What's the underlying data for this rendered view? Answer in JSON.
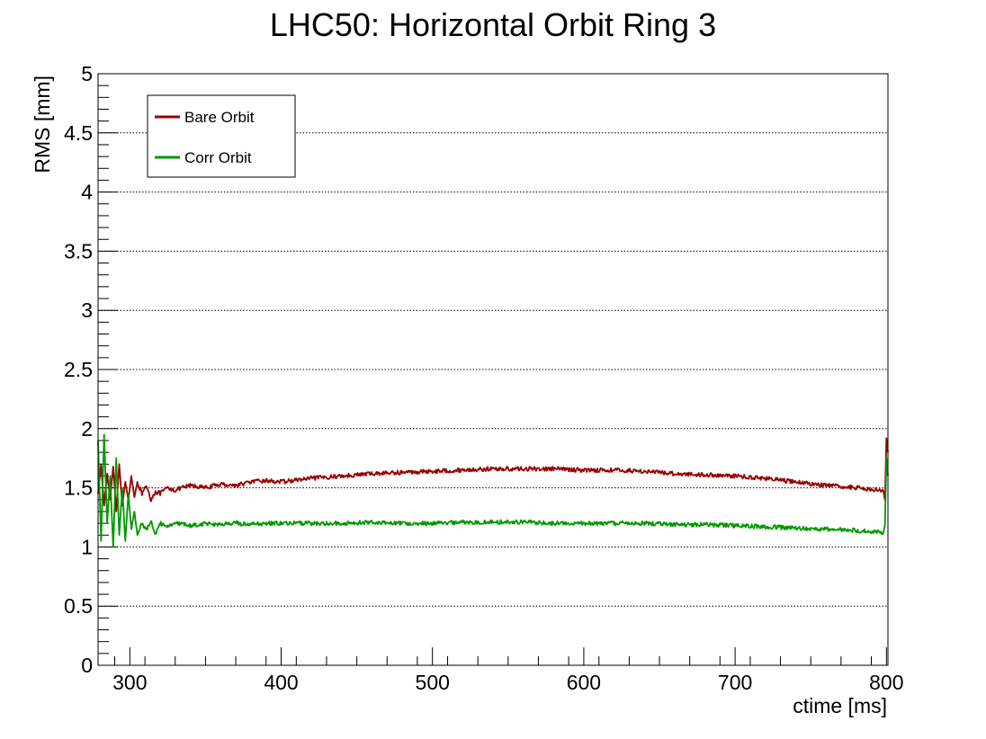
{
  "chart_data": {
    "type": "line",
    "title": "LHC50: Horizontal Orbit Ring 3",
    "xlabel": "ctime [ms]",
    "ylabel": "RMS [mm]",
    "xlim": [
      279,
      801
    ],
    "ylim": [
      0,
      5
    ],
    "x_ticks": [
      "300",
      "400",
      "500",
      "600",
      "700",
      "800"
    ],
    "y_ticks": [
      "0",
      "0.5",
      "1",
      "1.5",
      "2",
      "2.5",
      "3",
      "3.5",
      "4",
      "4.5",
      "5"
    ],
    "grid": "horizontal dotted",
    "legend_position": "top-left",
    "series": [
      {
        "name": "Bare Orbit",
        "color": "#990000",
        "x": [
          279,
          281,
          283,
          285,
          287,
          289,
          291,
          293,
          295,
          297,
          299,
          301,
          303,
          305,
          308,
          311,
          314,
          317,
          320,
          325,
          330,
          340,
          350,
          360,
          370,
          380,
          390,
          400,
          420,
          440,
          460,
          480,
          500,
          520,
          540,
          560,
          580,
          600,
          620,
          640,
          660,
          680,
          700,
          720,
          740,
          760,
          780,
          790,
          795,
          798,
          799,
          800,
          801
        ],
        "y": [
          1.45,
          1.7,
          1.35,
          1.62,
          1.4,
          1.68,
          1.3,
          1.7,
          1.35,
          1.55,
          1.4,
          1.6,
          1.42,
          1.55,
          1.45,
          1.52,
          1.4,
          1.47,
          1.45,
          1.5,
          1.48,
          1.52,
          1.5,
          1.53,
          1.52,
          1.55,
          1.56,
          1.55,
          1.58,
          1.6,
          1.62,
          1.63,
          1.64,
          1.65,
          1.66,
          1.66,
          1.66,
          1.65,
          1.65,
          1.64,
          1.62,
          1.61,
          1.6,
          1.58,
          1.55,
          1.52,
          1.5,
          1.49,
          1.48,
          1.47,
          1.4,
          1.92,
          1.8
        ]
      },
      {
        "name": "Corr Orbit",
        "color": "#009900",
        "x": [
          279,
          281,
          283,
          285,
          287,
          289,
          291,
          293,
          295,
          297,
          299,
          301,
          303,
          305,
          308,
          311,
          314,
          317,
          320,
          325,
          330,
          340,
          350,
          360,
          370,
          380,
          390,
          400,
          420,
          440,
          460,
          480,
          500,
          520,
          540,
          560,
          580,
          600,
          620,
          640,
          660,
          680,
          700,
          720,
          740,
          760,
          780,
          790,
          795,
          798,
          799,
          800,
          801
        ],
        "y": [
          1.9,
          1.05,
          1.95,
          1.2,
          1.6,
          1.0,
          1.75,
          1.1,
          1.5,
          1.05,
          1.45,
          1.15,
          1.3,
          1.1,
          1.2,
          1.15,
          1.22,
          1.1,
          1.2,
          1.18,
          1.2,
          1.18,
          1.2,
          1.19,
          1.2,
          1.19,
          1.2,
          1.2,
          1.2,
          1.2,
          1.21,
          1.2,
          1.2,
          1.21,
          1.21,
          1.21,
          1.2,
          1.2,
          1.2,
          1.2,
          1.19,
          1.19,
          1.18,
          1.17,
          1.16,
          1.15,
          1.14,
          1.13,
          1.13,
          1.12,
          1.18,
          1.75,
          1.6
        ]
      }
    ]
  }
}
